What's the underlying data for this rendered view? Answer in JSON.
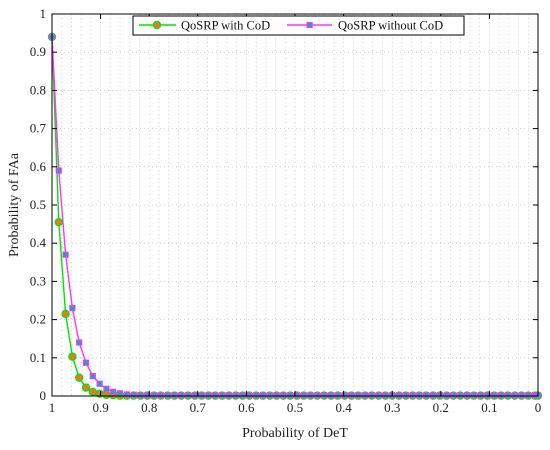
{
  "chart_data": {
    "type": "line",
    "title": "",
    "xlabel": "Probability of DeT",
    "ylabel": "Probability of FAa",
    "xlim": [
      1,
      0
    ],
    "ylim": [
      0,
      1
    ],
    "x_reversed": true,
    "x_ticks": [
      "1",
      "0.9",
      "0.8",
      "0.7",
      "0.6",
      "0.5",
      "0.4",
      "0.3",
      "0.2",
      "0.1",
      "0"
    ],
    "y_ticks": [
      "0",
      "0.1",
      "0.2",
      "0.3",
      "0.4",
      "0.5",
      "0.6",
      "0.7",
      "0.8",
      "0.9",
      "1"
    ],
    "grid": "dotted",
    "legend_position": "top",
    "series": [
      {
        "name": "QoSRP with CoD",
        "color": "#00e600",
        "marker": "circle",
        "marker_fill": "#e57a2a",
        "x": [
          1.0,
          0.986,
          0.972,
          0.958,
          0.944,
          0.93,
          0.916,
          0.902,
          0.888,
          0.874,
          0.86,
          0.846,
          0.832,
          0.818,
          0.804,
          0.79,
          0.776,
          0.762,
          0.748,
          0.734,
          0.72,
          0.706,
          0.692,
          0.678,
          0.664,
          0.65,
          0.636,
          0.622,
          0.608,
          0.594,
          0.58,
          0.566,
          0.552,
          0.538,
          0.524,
          0.51,
          0.496,
          0.482,
          0.468,
          0.454,
          0.44,
          0.426,
          0.412,
          0.398,
          0.384,
          0.37,
          0.356,
          0.342,
          0.328,
          0.314,
          0.3,
          0.286,
          0.272,
          0.258,
          0.244,
          0.23,
          0.216,
          0.202,
          0.188,
          0.174,
          0.16,
          0.146,
          0.132,
          0.118,
          0.104,
          0.09,
          0.076,
          0.062,
          0.048,
          0.034,
          0.02,
          0.006,
          0.0
        ],
        "values": [
          0.94,
          0.455,
          0.215,
          0.103,
          0.048,
          0.022,
          0.011,
          0.006,
          0.003,
          0.002,
          0.001,
          0.001,
          0.001,
          0.001,
          0.001,
          0.001,
          0.001,
          0.001,
          0.001,
          0.001,
          0.001,
          0.001,
          0.001,
          0.001,
          0.001,
          0.001,
          0.001,
          0.001,
          0.001,
          0.001,
          0.001,
          0.001,
          0.001,
          0.001,
          0.001,
          0.001,
          0.001,
          0.001,
          0.001,
          0.001,
          0.001,
          0.001,
          0.001,
          0.001,
          0.001,
          0.001,
          0.001,
          0.001,
          0.001,
          0.001,
          0.001,
          0.001,
          0.001,
          0.001,
          0.001,
          0.001,
          0.001,
          0.001,
          0.001,
          0.001,
          0.001,
          0.001,
          0.001,
          0.001,
          0.001,
          0.001,
          0.001,
          0.001,
          0.001,
          0.001,
          0.001,
          0.001,
          0.001
        ]
      },
      {
        "name": "QoSRP without CoD",
        "color": "#ff33ff",
        "marker": "square",
        "marker_fill": "#2aa0b8",
        "x": [
          1.0,
          0.986,
          0.972,
          0.958,
          0.944,
          0.93,
          0.916,
          0.902,
          0.888,
          0.874,
          0.86,
          0.846,
          0.832,
          0.818,
          0.804,
          0.79,
          0.776,
          0.762,
          0.748,
          0.734,
          0.72,
          0.706,
          0.692,
          0.678,
          0.664,
          0.65,
          0.636,
          0.622,
          0.608,
          0.594,
          0.58,
          0.566,
          0.552,
          0.538,
          0.524,
          0.51,
          0.496,
          0.482,
          0.468,
          0.454,
          0.44,
          0.426,
          0.412,
          0.398,
          0.384,
          0.37,
          0.356,
          0.342,
          0.328,
          0.314,
          0.3,
          0.286,
          0.272,
          0.258,
          0.244,
          0.23,
          0.216,
          0.202,
          0.188,
          0.174,
          0.16,
          0.146,
          0.132,
          0.118,
          0.104,
          0.09,
          0.076,
          0.062,
          0.048,
          0.034,
          0.02,
          0.006,
          0.0
        ],
        "values": [
          0.94,
          0.59,
          0.37,
          0.23,
          0.14,
          0.087,
          0.052,
          0.032,
          0.019,
          0.011,
          0.007,
          0.004,
          0.003,
          0.002,
          0.002,
          0.002,
          0.002,
          0.002,
          0.002,
          0.002,
          0.002,
          0.002,
          0.002,
          0.002,
          0.002,
          0.002,
          0.002,
          0.002,
          0.002,
          0.002,
          0.002,
          0.002,
          0.002,
          0.002,
          0.002,
          0.002,
          0.002,
          0.002,
          0.002,
          0.002,
          0.002,
          0.002,
          0.002,
          0.002,
          0.002,
          0.002,
          0.002,
          0.002,
          0.002,
          0.002,
          0.002,
          0.002,
          0.002,
          0.002,
          0.002,
          0.002,
          0.002,
          0.002,
          0.002,
          0.002,
          0.002,
          0.002,
          0.002,
          0.002,
          0.002,
          0.002,
          0.002,
          0.002,
          0.002,
          0.002,
          0.002,
          0.002,
          0.002
        ]
      }
    ]
  }
}
